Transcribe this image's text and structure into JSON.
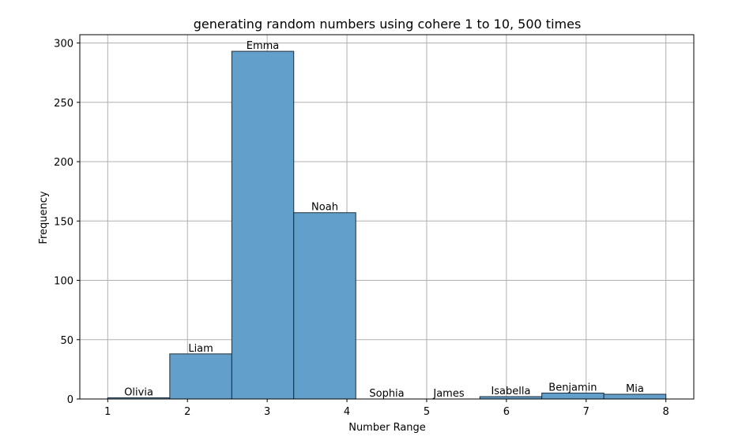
{
  "chart_data": {
    "type": "bar",
    "title": "generating random numbers using cohere 1 to 10, 500 times",
    "xlabel": "Number Range",
    "ylabel": "Frequency",
    "xlim": [
      0.65,
      8.35
    ],
    "ylim": [
      0,
      307
    ],
    "xticks": [
      1,
      2,
      3,
      4,
      5,
      6,
      7,
      8
    ],
    "yticks": [
      0,
      50,
      100,
      150,
      200,
      250,
      300
    ],
    "grid": true,
    "bar_color": "#62a0cb",
    "bar_edge_color": "#1f2d3a",
    "bars": [
      {
        "label": "Olivia",
        "x0": 1.0,
        "x1": 1.778,
        "value": 1
      },
      {
        "label": "Liam",
        "x0": 1.778,
        "x1": 2.556,
        "value": 38
      },
      {
        "label": "Emma",
        "x0": 2.556,
        "x1": 3.333,
        "value": 293
      },
      {
        "label": "Noah",
        "x0": 3.333,
        "x1": 4.111,
        "value": 157
      },
      {
        "label": "Sophia",
        "x0": 4.111,
        "x1": 4.889,
        "value": 0
      },
      {
        "label": "James",
        "x0": 4.889,
        "x1": 5.667,
        "value": 0
      },
      {
        "label": "Isabella",
        "x0": 5.667,
        "x1": 6.444,
        "value": 2
      },
      {
        "label": "Benjamin",
        "x0": 6.444,
        "x1": 7.222,
        "value": 5
      },
      {
        "label": "Mia",
        "x0": 7.222,
        "x1": 8.0,
        "value": 4
      }
    ]
  }
}
